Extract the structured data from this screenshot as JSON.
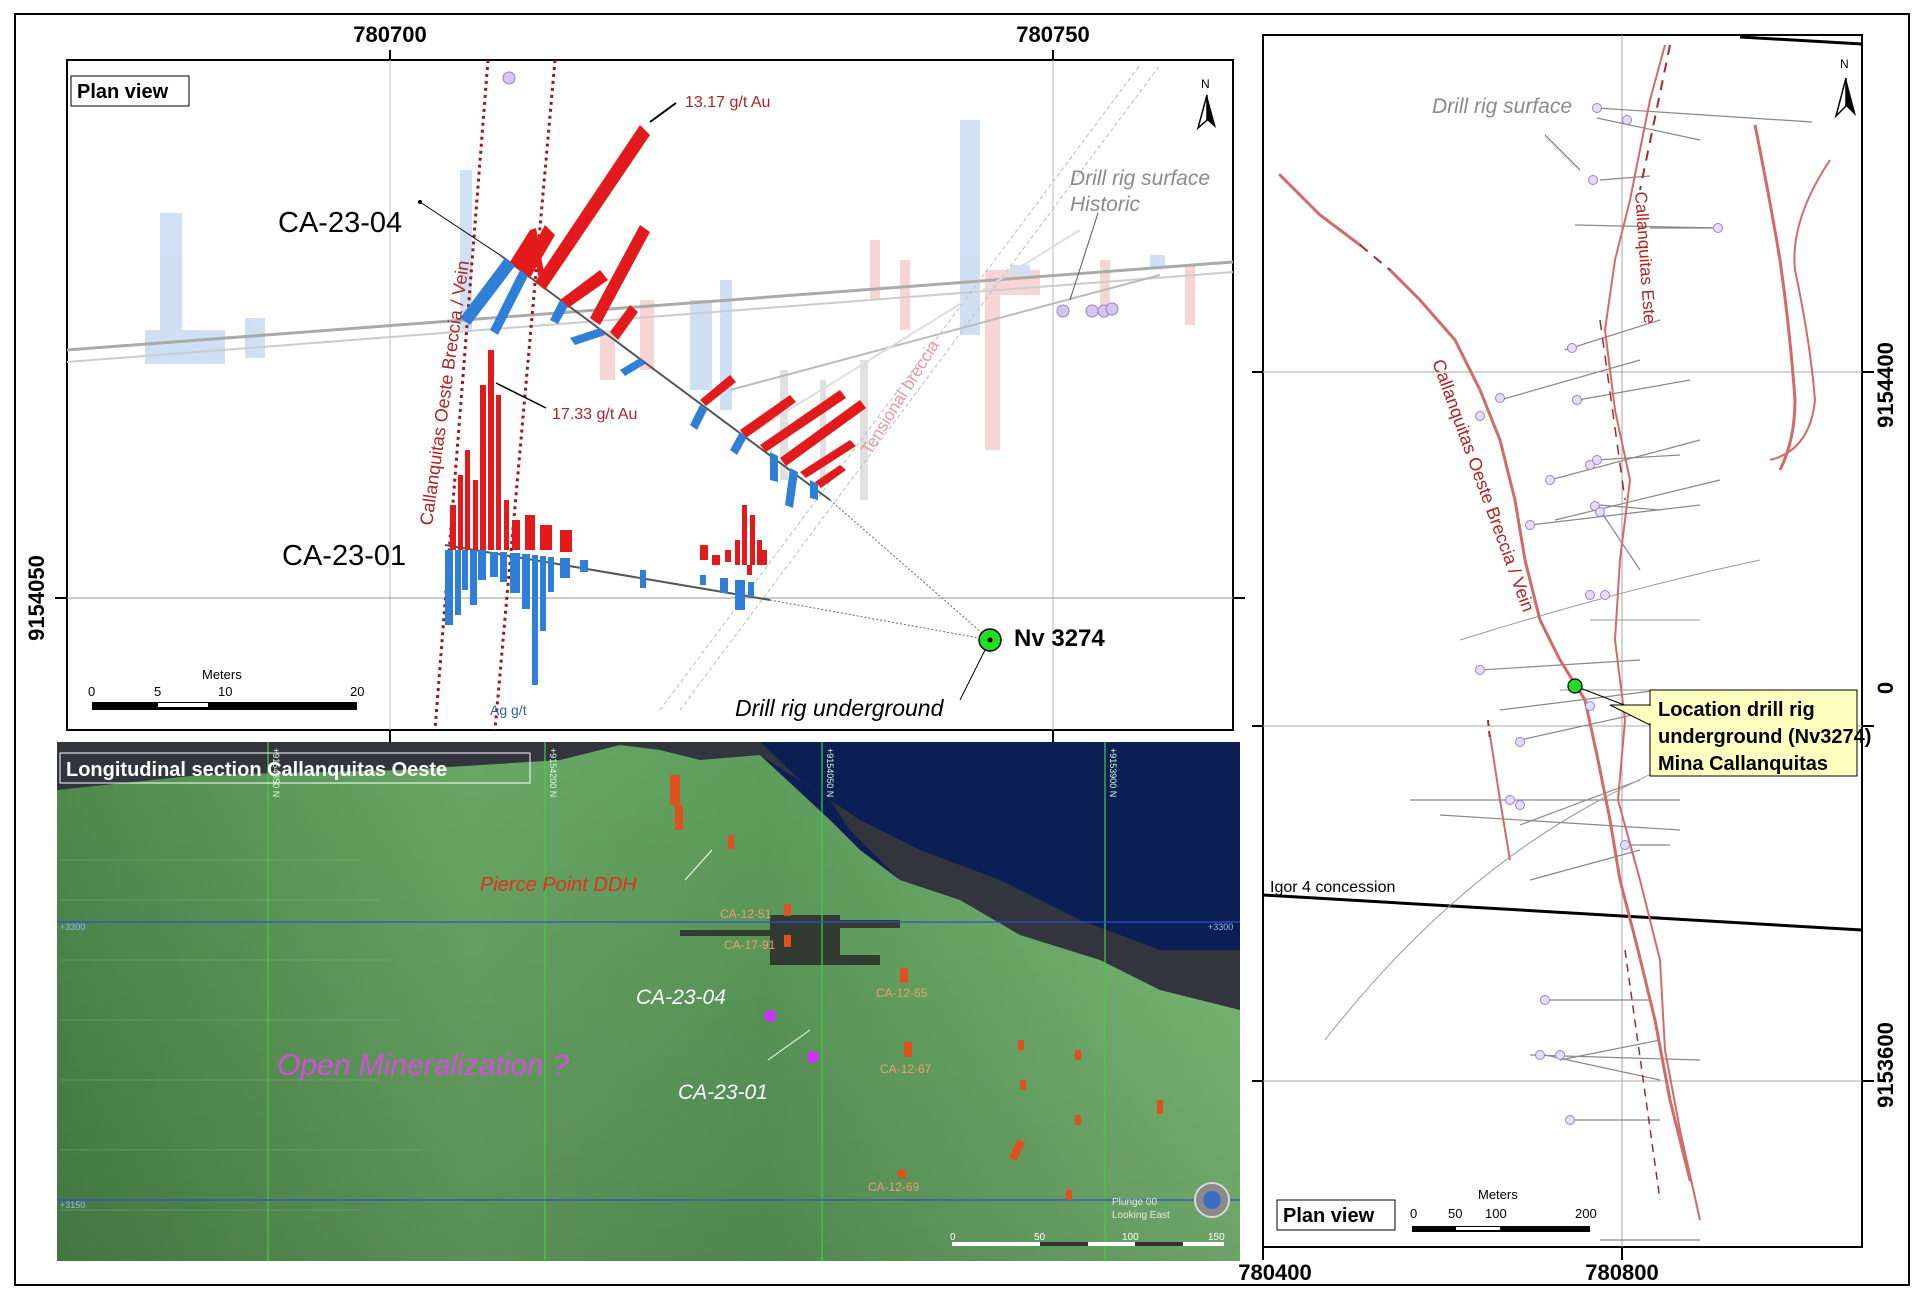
{
  "plan_view_top": {
    "title": "Plan view",
    "coord_top_left": "780700",
    "coord_top_right": "780750",
    "coord_left": "9154050",
    "north_label": "N",
    "hole_ca_23_04": "CA-23-04",
    "hole_ca_23_01": "CA-23-01",
    "annotation_gold_high": "13.17 g/t  Au",
    "annotation_gold_mid": "17.33 g/t  Au",
    "label_vein": "Callanquitas Oeste Breccia / Vein",
    "label_tensional": "Tensional breccia",
    "label_drill_surface_1": "Drill rig surface",
    "label_drill_surface_2": "Historic",
    "label_nv": "Nv 3274",
    "label_underground": "Drill rig underground",
    "label_ag": "Ag g/t",
    "scale_title": "Meters",
    "scale_0": "0",
    "scale_5": "5",
    "scale_10": "10",
    "scale_20": "20"
  },
  "longitudinal": {
    "title": "Longitudinal section Callanquitas Oeste",
    "label_pierce": "Pierce Point DDH",
    "label_open": "Open Mineralization ?",
    "hole_ca_23_04": "CA-23-04",
    "hole_ca_23_01": "CA-23-01",
    "hole_ca_12_51": "CA-12-51",
    "hole_ca_17_91": "CA-17-91",
    "hole_ca_12_65": "CA-12-65",
    "hole_ca_12_67": "CA-12-67",
    "hole_ca_12_69": "CA-12-69",
    "elev_3300_left": "+3300",
    "elev_3300_right": "+3300",
    "elev_3150_left": "+3150",
    "grid_1": "+9154350 N",
    "grid_2": "+9154200 N",
    "grid_3": "+9154050 N",
    "grid_4": "+9153900 N",
    "plunge_1": "Plunge 00",
    "plunge_2": "Looking East",
    "scale_0": "0",
    "scale_50": "50",
    "scale_100": "100",
    "scale_150": "150"
  },
  "plan_view_right": {
    "title": "Plan view",
    "north_label": "N",
    "coord_bottom_left": "780400",
    "coord_bottom_right": "780800",
    "coord_right_top": "9154400",
    "coord_right_mid": "0",
    "coord_right_bottom": "9153600",
    "label_drill_surface": "Drill rig surface",
    "label_este": "Callanquitas Este",
    "label_oeste": "Callanquitas Oeste Breccia / Vein",
    "callout_1": "Location drill rig",
    "callout_2": "underground (Nv3274)",
    "callout_3": "Mina Callanquitas",
    "label_igor": "Igor 4 concession",
    "scale_title": "Meters",
    "scale_0": "0",
    "scale_50": "50",
    "scale_100": "100",
    "scale_200": "200"
  },
  "colors": {
    "gold_bar": "#e31a1c",
    "silver_bar": "#2f7fd8",
    "vein_line": "#a52a2a",
    "drill_point": "#b9a5e0",
    "rig_green": "#22dd22",
    "callout_bg": "#ffffc0",
    "section_green": "#5fa05a",
    "section_sky": "#0b1f54"
  }
}
